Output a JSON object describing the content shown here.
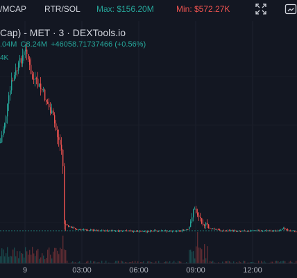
{
  "toolbar": {
    "mcap_label": "/MCAP",
    "rtr_label": "RTR/SOL",
    "max_label": "Max: $156.20M",
    "min_label": "Min: $572.27K",
    "max_color": "#26a69a",
    "min_color": "#ef5350",
    "fullscreen_icon": "fullscreen-icon",
    "screenshot_icon": "camera-icon"
  },
  "legend": {
    "title": "Cap) - MET · 3 · DEXTools.io",
    "open_fragment": ".04M",
    "close_label": "C8.24M",
    "change": "+46058.71737466 (+0.56%)",
    "volume_fragment": "4K"
  },
  "x_axis": {
    "labels": [
      "9",
      "03:00",
      "06:00",
      "09:00",
      "12:00"
    ]
  },
  "colors": {
    "background": "#131722",
    "up": "#26a69a",
    "down": "#ef5350",
    "baseline": "#26a69a"
  }
}
